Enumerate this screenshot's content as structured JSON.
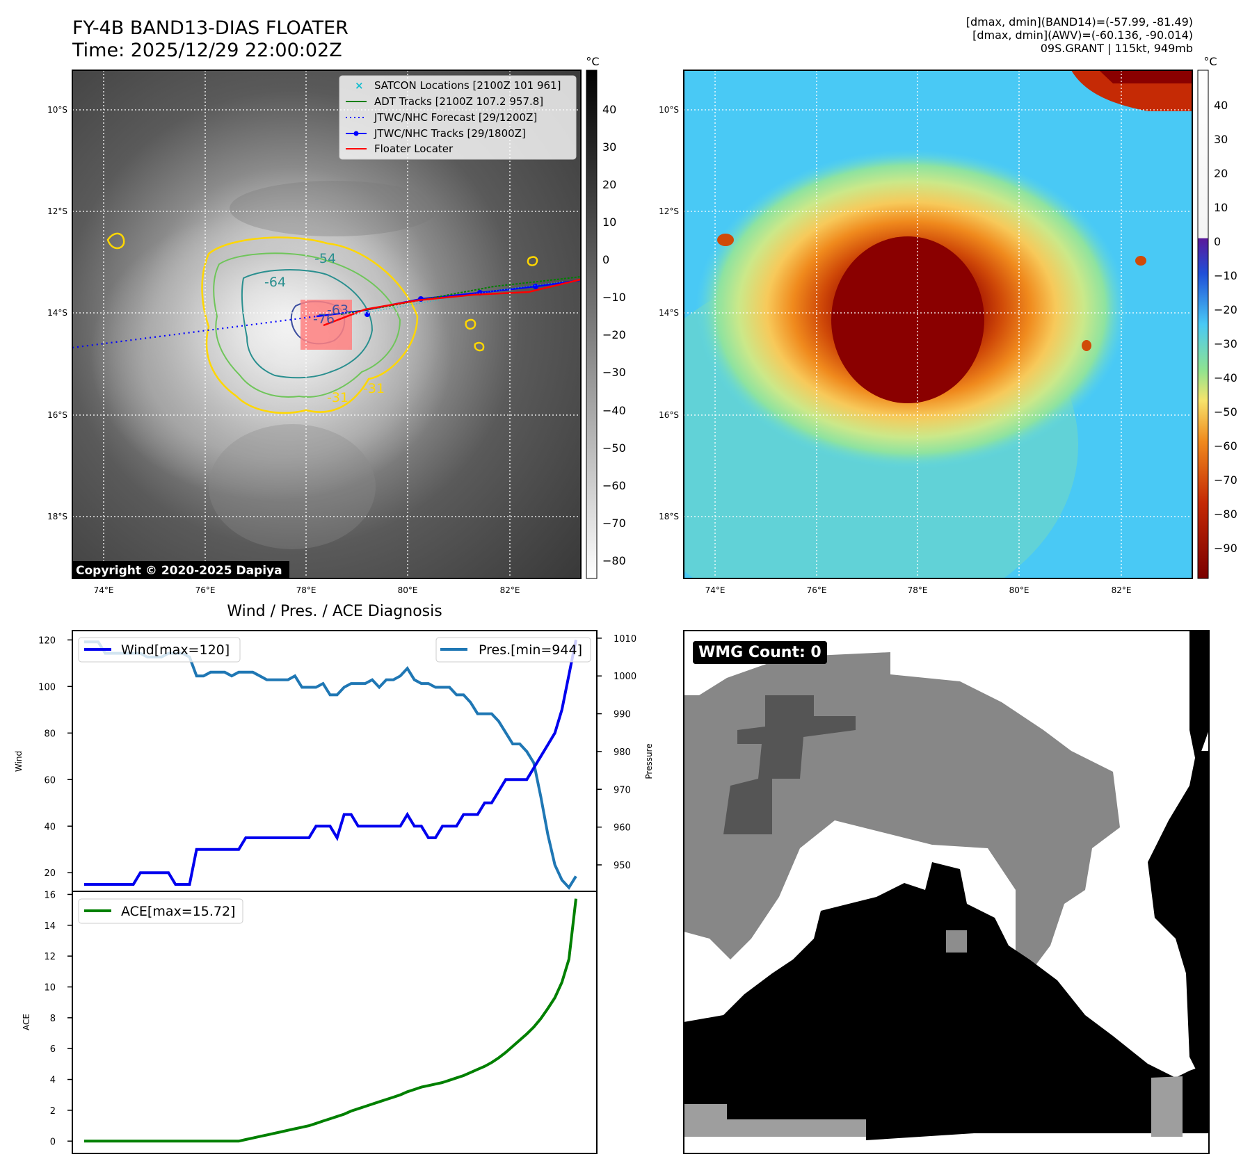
{
  "header": {
    "title_line1": "FY-4B BAND13-DIAS FLOATER",
    "title_line2": "Time: 2025/12/29 22:00:02Z",
    "info_line1": "[dmax, dmin](BAND14)=(-57.99, -81.49)",
    "info_line2": "[dmax, dmin](AWV)=(-60.136, -90.014)",
    "info_line3": "09S.GRANT | 115kt, 949mb"
  },
  "colors": {
    "wind": "#0000ee",
    "pressure": "#1f77b4",
    "ace": "#008000",
    "floater": "#ff0000",
    "adt": "#008000",
    "satcon": "#17becf",
    "forecast": "#0000ff"
  },
  "map_left": {
    "lon_labels": [
      "74°E",
      "76°E",
      "78°E",
      "80°E",
      "82°E"
    ],
    "lat_labels": [
      "10°S",
      "12°S",
      "14°S",
      "16°S",
      "18°S"
    ],
    "contour_labels": [
      "-54",
      "-64",
      "-76",
      "-31",
      "-31",
      "-63"
    ],
    "colorbar_unit": "°C",
    "colorbar_ticks": [
      "40",
      "30",
      "20",
      "10",
      "0",
      "−10",
      "−20",
      "−30",
      "−40",
      "−50",
      "−60",
      "−70",
      "−80"
    ],
    "copyright": "Copyright © 2020-2025 Dapiya",
    "legend": [
      {
        "label": "SATCON Locations [2100Z 101 961]",
        "icon": "x-marker"
      },
      {
        "label": "ADT Tracks [2100Z 107.2 957.8]",
        "icon": "line"
      },
      {
        "label": "JTWC/NHC Forecast [29/1200Z]",
        "icon": "dotted-line"
      },
      {
        "label": "JTWC/NHC Tracks [29/1800Z]",
        "icon": "dot-line"
      },
      {
        "label": "Floater Locater",
        "icon": "line"
      }
    ]
  },
  "map_right": {
    "lon_labels": [
      "74°E",
      "76°E",
      "78°E",
      "80°E",
      "82°E"
    ],
    "lat_labels": [
      "10°S",
      "12°S",
      "14°S",
      "16°S",
      "18°S"
    ],
    "colorbar_unit": "°C",
    "colorbar_ticks": [
      "40",
      "30",
      "20",
      "10",
      "0",
      "−10",
      "−20",
      "−30",
      "−40",
      "−50",
      "−60",
      "−70",
      "−80",
      "−90"
    ]
  },
  "diagnosis": {
    "title": "Wind / Pres. / ACE Diagnosis",
    "wind_ylabel": "Wind",
    "pressure_ylabel": "Pressure",
    "ace_ylabel": "ACE",
    "wind_legend": "Wind[max=120]",
    "pressure_legend": "Pres.[min=944]",
    "ace_legend": "ACE[max=15.72]"
  },
  "wmg": {
    "badge": "WMG Count: 0"
  },
  "chart_data": [
    {
      "type": "line",
      "title": "Wind / Pres. / ACE Diagnosis",
      "ylabel": "Wind",
      "ylim": [
        12,
        124
      ],
      "yticks": [
        20,
        40,
        60,
        80,
        100,
        120
      ],
      "series": [
        {
          "name": "Wind[max=120]",
          "values": [
            15,
            15,
            15,
            15,
            15,
            15,
            15,
            15,
            20,
            20,
            20,
            20,
            20,
            15,
            15,
            15,
            30,
            30,
            30,
            30,
            30,
            30,
            30,
            35,
            35,
            35,
            35,
            35,
            35,
            35,
            35,
            35,
            35,
            40,
            40,
            40,
            35,
            45,
            45,
            40,
            40,
            40,
            40,
            40,
            40,
            40,
            45,
            40,
            40,
            35,
            35,
            40,
            40,
            40,
            45,
            45,
            45,
            50,
            50,
            55,
            60,
            60,
            60,
            60,
            65,
            70,
            75,
            80,
            90,
            105,
            120
          ]
        }
      ]
    },
    {
      "type": "line",
      "ylabel": "Pressure",
      "ylim": [
        943,
        1012
      ],
      "yticks": [
        950,
        960,
        970,
        980,
        990,
        1000,
        1010
      ],
      "series": [
        {
          "name": "Pres.[min=944]",
          "values": [
            1009,
            1009,
            1009,
            1006,
            1006,
            1006,
            1006,
            1006,
            1006,
            1005,
            1005,
            1005,
            1006,
            1006,
            1006,
            1005,
            1000,
            1000,
            1001,
            1001,
            1001,
            1000,
            1001,
            1001,
            1001,
            1000,
            999,
            999,
            999,
            999,
            1000,
            997,
            997,
            997,
            998,
            995,
            995,
            997,
            998,
            998,
            998,
            999,
            997,
            999,
            999,
            1000,
            1002,
            999,
            998,
            998,
            997,
            997,
            997,
            995,
            995,
            993,
            990,
            990,
            990,
            988,
            985,
            982,
            982,
            980,
            977,
            968,
            958,
            950,
            946,
            944,
            947
          ]
        }
      ]
    },
    {
      "type": "line",
      "ylabel": "ACE",
      "ylim": [
        -0.8,
        16.2
      ],
      "yticks": [
        0,
        2,
        4,
        6,
        8,
        10,
        12,
        14,
        16
      ],
      "series": [
        {
          "name": "ACE[max=15.72]",
          "values": [
            0,
            0,
            0,
            0,
            0,
            0,
            0,
            0,
            0,
            0,
            0,
            0,
            0,
            0,
            0,
            0,
            0,
            0,
            0,
            0,
            0,
            0,
            0,
            0.1,
            0.2,
            0.3,
            0.4,
            0.5,
            0.6,
            0.7,
            0.8,
            0.9,
            1.0,
            1.15,
            1.3,
            1.45,
            1.6,
            1.75,
            1.95,
            2.1,
            2.25,
            2.4,
            2.55,
            2.7,
            2.85,
            3.0,
            3.2,
            3.35,
            3.5,
            3.6,
            3.7,
            3.8,
            3.95,
            4.1,
            4.25,
            4.45,
            4.65,
            4.85,
            5.1,
            5.4,
            5.75,
            6.15,
            6.55,
            6.95,
            7.4,
            7.95,
            8.6,
            9.3,
            10.3,
            11.8,
            15.72
          ]
        }
      ]
    }
  ]
}
